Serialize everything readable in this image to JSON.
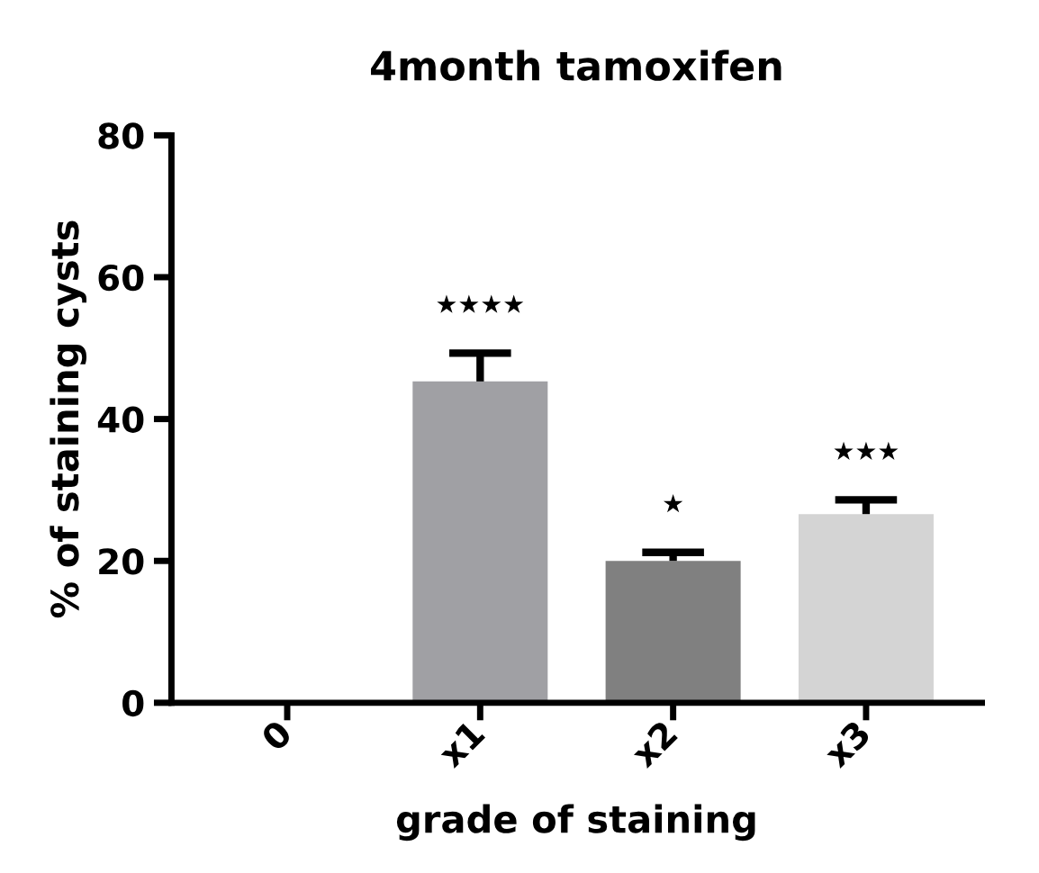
{
  "chart_data": {
    "type": "bar",
    "title": "4month tamoxifen",
    "xlabel": "grade of staining",
    "ylabel": "% of staining cysts",
    "categories": [
      "0",
      "x1",
      "x2",
      "x3"
    ],
    "values": [
      0,
      45.3,
      20.0,
      26.6
    ],
    "errors": [
      null,
      4.0,
      1.2,
      2.0
    ],
    "colors": [
      "#a0a0a4",
      "#a0a0a4",
      "#808080",
      "#d4d4d4"
    ],
    "ylim": [
      0,
      80
    ],
    "yticks": [
      0,
      20,
      40,
      60,
      80
    ],
    "grid": false,
    "annotations": [
      "★★★★",
      "★",
      "★★★"
    ]
  }
}
